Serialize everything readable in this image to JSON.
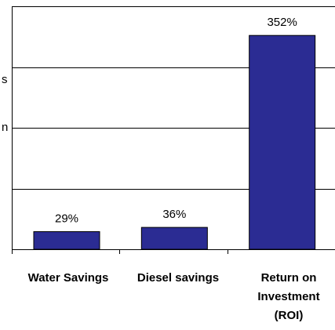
{
  "chart_data": {
    "type": "bar",
    "categories": [
      [
        "Water Savings"
      ],
      [
        "Diesel savings"
      ],
      [
        "Return on",
        "Investment",
        "(ROI)"
      ]
    ],
    "values": [
      29,
      36,
      352
    ],
    "value_labels": [
      "29%",
      "36%",
      "352%"
    ],
    "value_unit": "%",
    "ylim": [
      0,
      400
    ],
    "grid": true,
    "bar_color": "#2B2C93",
    "clipped_left_text": [
      "s",
      "n"
    ]
  }
}
